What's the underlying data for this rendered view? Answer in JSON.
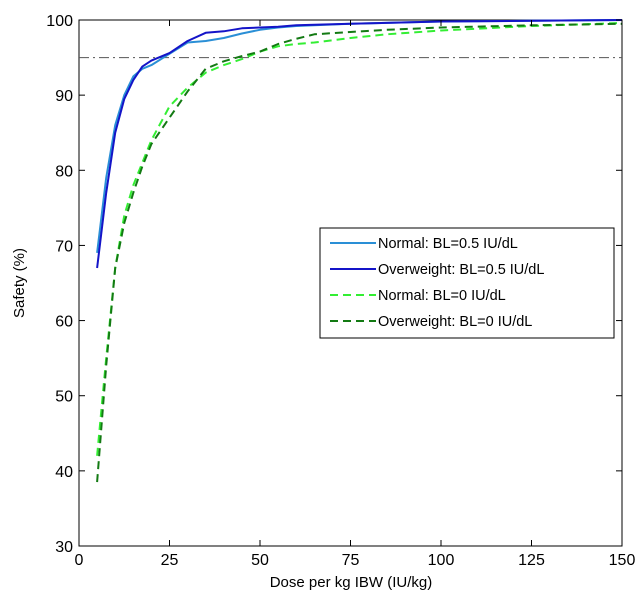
{
  "chart_data": {
    "type": "line",
    "title": "",
    "xlabel": "Dose per kg IBW (IU/kg)",
    "ylabel": "Safety (%)",
    "xlim": [
      0,
      150
    ],
    "ylim": [
      30,
      100
    ],
    "xticks": [
      "0",
      "25",
      "50",
      "75",
      "100",
      "125",
      "150"
    ],
    "yticks": [
      "30",
      "40",
      "50",
      "60",
      "70",
      "80",
      "90",
      "100"
    ],
    "grid": false,
    "legend_position": "center-right",
    "reference_line": {
      "y": 95,
      "style": "dash-dot",
      "color": "#555555"
    },
    "series": [
      {
        "name": "Normal: BL=0.5 IU/dL",
        "color": "#2a8fd6",
        "dash": "solid",
        "points": [
          [
            5,
            69
          ],
          [
            7.5,
            79
          ],
          [
            10,
            86
          ],
          [
            12.5,
            90
          ],
          [
            15,
            92.5
          ],
          [
            17.5,
            93.5
          ],
          [
            20,
            94
          ],
          [
            25,
            95.5
          ],
          [
            30,
            97
          ],
          [
            35,
            97.2
          ],
          [
            40,
            97.6
          ],
          [
            45,
            98.2
          ],
          [
            50,
            98.7
          ],
          [
            55,
            99
          ],
          [
            60,
            99.2
          ],
          [
            75,
            99.5
          ],
          [
            100,
            99.8
          ],
          [
            125,
            99.9
          ],
          [
            150,
            100
          ]
        ]
      },
      {
        "name": "Overweight: BL=0.5 IU/dL",
        "color": "#1414c8",
        "dash": "solid",
        "points": [
          [
            5,
            67
          ],
          [
            7.5,
            77
          ],
          [
            10,
            85
          ],
          [
            12.5,
            89.5
          ],
          [
            15,
            92
          ],
          [
            17.5,
            93.8
          ],
          [
            20,
            94.6
          ],
          [
            25,
            95.6
          ],
          [
            30,
            97.2
          ],
          [
            35,
            98.3
          ],
          [
            40,
            98.5
          ],
          [
            45,
            98.9
          ],
          [
            50,
            99
          ],
          [
            55,
            99.1
          ],
          [
            60,
            99.3
          ],
          [
            75,
            99.5
          ],
          [
            100,
            99.8
          ],
          [
            125,
            99.9
          ],
          [
            150,
            100
          ]
        ]
      },
      {
        "name": "Normal: BL=0 IU/dL",
        "color": "#33ee33",
        "dash": "dashed",
        "points": [
          [
            5,
            42
          ],
          [
            7.5,
            55
          ],
          [
            10,
            67
          ],
          [
            12.5,
            74
          ],
          [
            15,
            78
          ],
          [
            17.5,
            81
          ],
          [
            20,
            84
          ],
          [
            25,
            88.5
          ],
          [
            30,
            91
          ],
          [
            35,
            93
          ],
          [
            40,
            94
          ],
          [
            45,
            94.8
          ],
          [
            50,
            95.8
          ],
          [
            55,
            96.5
          ],
          [
            60,
            96.8
          ],
          [
            65,
            97
          ],
          [
            75,
            97.6
          ],
          [
            85,
            98.1
          ],
          [
            100,
            98.6
          ],
          [
            125,
            99.2
          ],
          [
            150,
            99.6
          ]
        ]
      },
      {
        "name": "Overweight: BL=0 IU/dL",
        "color": "#137a13",
        "dash": "dashed",
        "points": [
          [
            5,
            38.5
          ],
          [
            7.5,
            54
          ],
          [
            10,
            67
          ],
          [
            12.5,
            73
          ],
          [
            15,
            77
          ],
          [
            17.5,
            80.5
          ],
          [
            20,
            83.5
          ],
          [
            25,
            87
          ],
          [
            30,
            90.5
          ],
          [
            35,
            93.5
          ],
          [
            40,
            94.5
          ],
          [
            45,
            95.2
          ],
          [
            50,
            95.8
          ],
          [
            55,
            96.8
          ],
          [
            60,
            97.5
          ],
          [
            65,
            98.1
          ],
          [
            75,
            98.4
          ],
          [
            85,
            98.7
          ],
          [
            100,
            99
          ],
          [
            125,
            99.3
          ],
          [
            150,
            99.5
          ]
        ]
      }
    ]
  }
}
